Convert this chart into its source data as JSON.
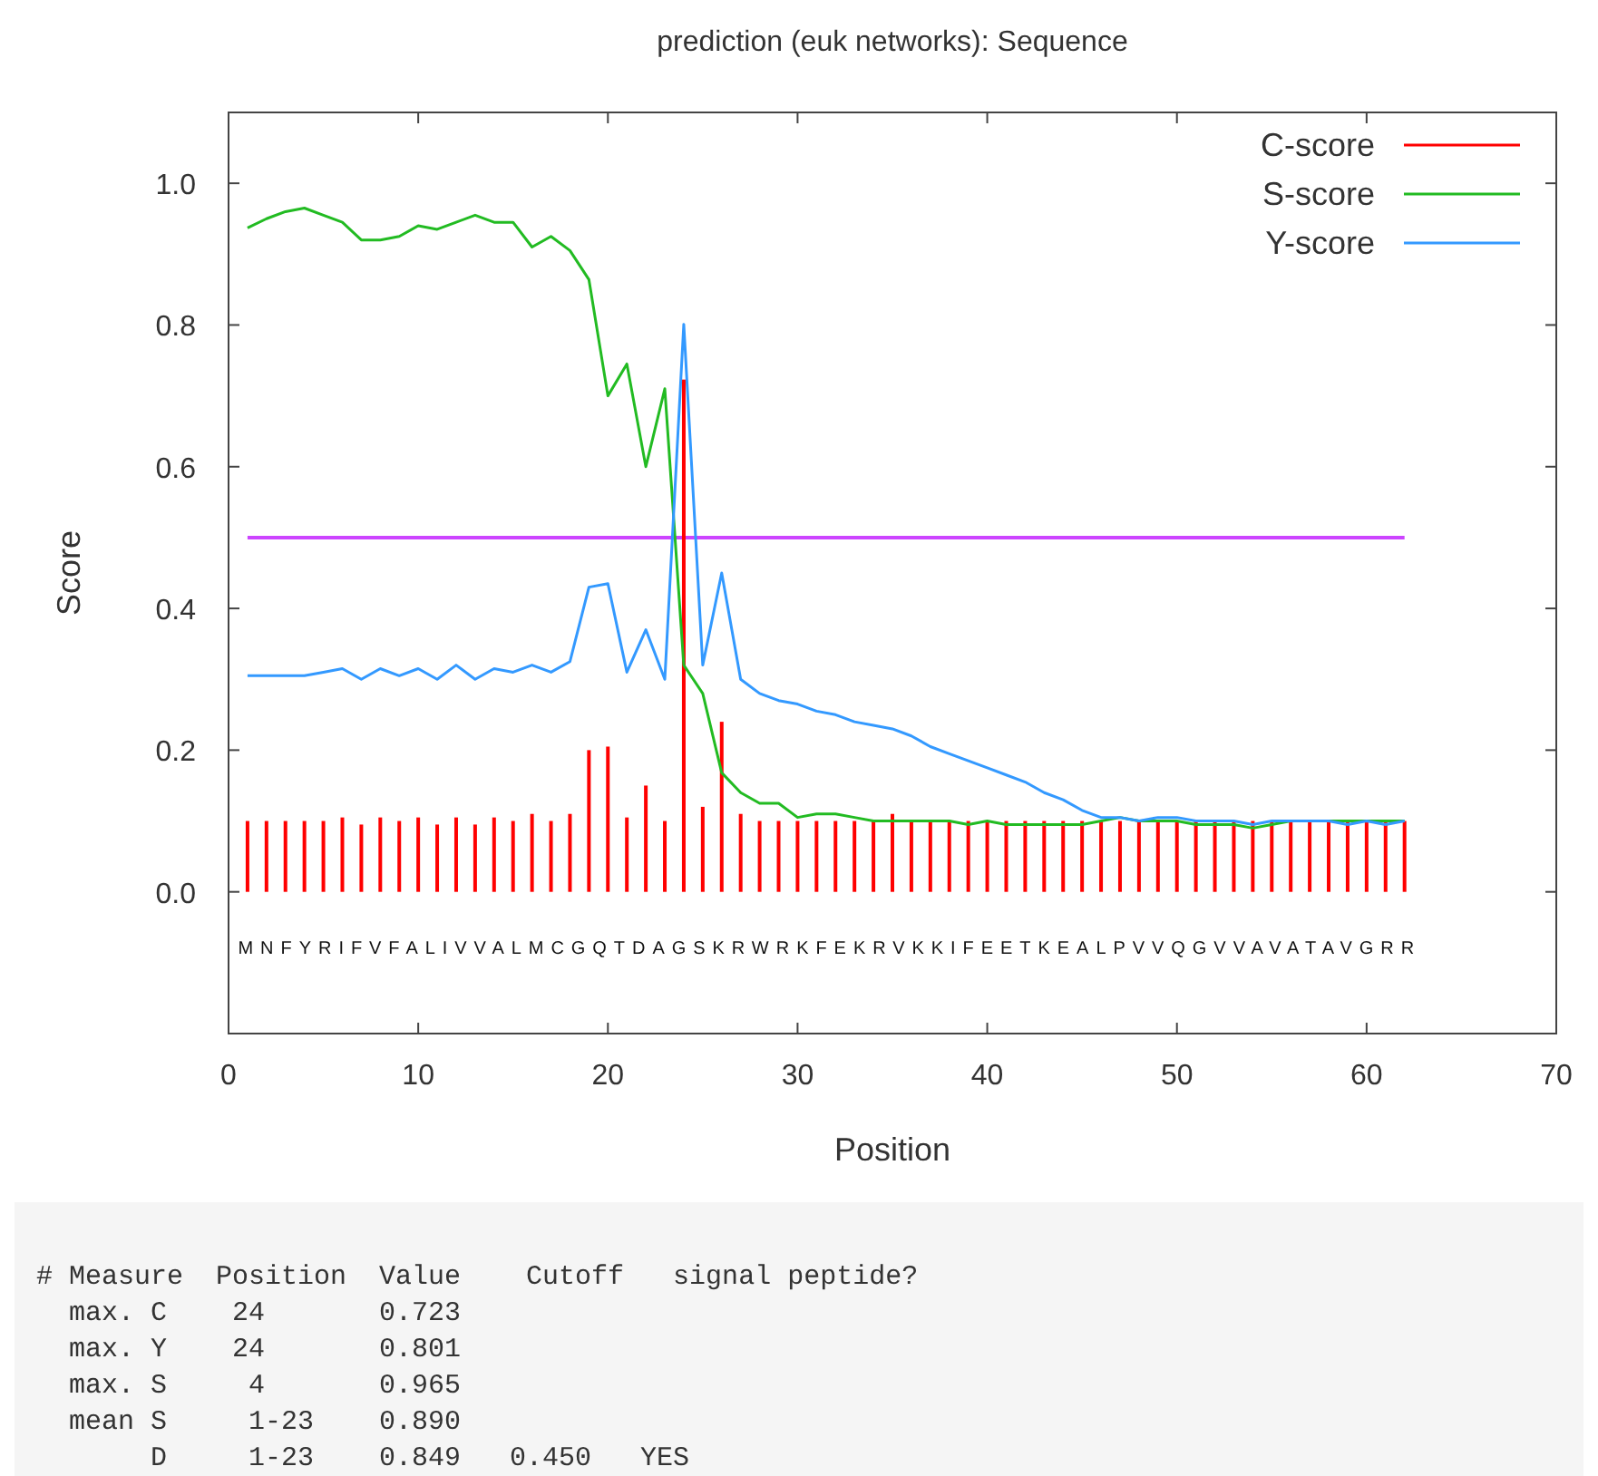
{
  "chart_data": {
    "type": "line",
    "title": "prediction (euk networks): Sequence",
    "xlabel": "Position",
    "ylabel": "Score",
    "x": [
      1,
      2,
      3,
      4,
      5,
      6,
      7,
      8,
      9,
      10,
      11,
      12,
      13,
      14,
      15,
      16,
      17,
      18,
      19,
      20,
      21,
      22,
      23,
      24,
      25,
      26,
      27,
      28,
      29,
      30,
      31,
      32,
      33,
      34,
      35,
      36,
      37,
      38,
      39,
      40,
      41,
      42,
      43,
      44,
      45,
      46,
      47,
      48,
      49,
      50,
      51,
      52,
      53,
      54,
      55,
      56,
      57,
      58,
      59,
      60,
      61,
      62
    ],
    "series": [
      {
        "name": "C-score",
        "type": "bar",
        "color": "#ff0000",
        "values": [
          0.1,
          0.1,
          0.1,
          0.1,
          0.1,
          0.105,
          0.095,
          0.105,
          0.1,
          0.105,
          0.095,
          0.105,
          0.095,
          0.105,
          0.1,
          0.11,
          0.1,
          0.11,
          0.2,
          0.205,
          0.105,
          0.15,
          0.1,
          0.723,
          0.12,
          0.24,
          0.11,
          0.1,
          0.1,
          0.1,
          0.1,
          0.1,
          0.1,
          0.1,
          0.11,
          0.1,
          0.1,
          0.1,
          0.1,
          0.1,
          0.1,
          0.1,
          0.1,
          0.1,
          0.1,
          0.1,
          0.1,
          0.1,
          0.1,
          0.1,
          0.1,
          0.1,
          0.1,
          0.1,
          0.1,
          0.1,
          0.1,
          0.1,
          0.1,
          0.1,
          0.1,
          0.1
        ]
      },
      {
        "name": "S-score",
        "color": "#22bb22",
        "values": [
          0.937,
          0.95,
          0.96,
          0.965,
          0.955,
          0.945,
          0.92,
          0.92,
          0.925,
          0.94,
          0.935,
          0.945,
          0.955,
          0.945,
          0.945,
          0.91,
          0.925,
          0.905,
          0.864,
          0.7,
          0.745,
          0.6,
          0.71,
          0.32,
          0.28,
          0.168,
          0.14,
          0.125,
          0.125,
          0.105,
          0.11,
          0.11,
          0.105,
          0.1,
          0.1,
          0.1,
          0.1,
          0.1,
          0.095,
          0.1,
          0.095,
          0.095,
          0.095,
          0.095,
          0.095,
          0.1,
          0.105,
          0.1,
          0.1,
          0.1,
          0.095,
          0.095,
          0.095,
          0.09,
          0.095,
          0.1,
          0.1,
          0.1,
          0.1,
          0.1,
          0.1,
          0.1
        ]
      },
      {
        "name": "Y-score",
        "color": "#3399ff",
        "values": [
          0.305,
          0.305,
          0.305,
          0.305,
          0.31,
          0.315,
          0.3,
          0.315,
          0.305,
          0.315,
          0.3,
          0.32,
          0.3,
          0.315,
          0.31,
          0.32,
          0.31,
          0.325,
          0.43,
          0.435,
          0.31,
          0.37,
          0.3,
          0.801,
          0.32,
          0.45,
          0.3,
          0.28,
          0.27,
          0.265,
          0.255,
          0.25,
          0.24,
          0.235,
          0.23,
          0.22,
          0.205,
          0.195,
          0.185,
          0.175,
          0.165,
          0.155,
          0.14,
          0.13,
          0.115,
          0.105,
          0.105,
          0.1,
          0.105,
          0.105,
          0.1,
          0.1,
          0.1,
          0.095,
          0.1,
          0.1,
          0.1,
          0.1,
          0.095,
          0.1,
          0.095,
          0.1
        ]
      }
    ],
    "xlim": [
      0,
      70
    ],
    "ylim": [
      -0.2,
      1.1
    ],
    "xticks": [
      0,
      10,
      20,
      30,
      40,
      50,
      60,
      70
    ],
    "yticks": [
      {
        "value": 0,
        "label": "0.0"
      },
      {
        "value": 0.2,
        "label": "0.2"
      },
      {
        "value": 0.4,
        "label": "0.4"
      },
      {
        "value": 0.6,
        "label": "0.6"
      },
      {
        "value": 0.8,
        "label": "0.8"
      },
      {
        "value": 1,
        "label": "1.0"
      }
    ],
    "ref_lines": [
      {
        "axis": "y",
        "value": 0.5,
        "color": "#cc44ff"
      }
    ],
    "legend": "top right",
    "grid": false,
    "marker": "none",
    "line_style": "solid",
    "annotations": [
      "MNFYRIFVFALIVVALMCGQTDAGSKRWRKFEKRVKKIFEETKEALPVVQGVVAVATAVGRR",
      "# Measure  Position  Value    Cutoff   signal peptide?",
      "  max. C    24       0.723",
      "  max. Y    24       0.801",
      "  max. S     4       0.965",
      "  mean S     1-23    0.890",
      "       D     1-23    0.849   0.450   YES"
    ]
  }
}
